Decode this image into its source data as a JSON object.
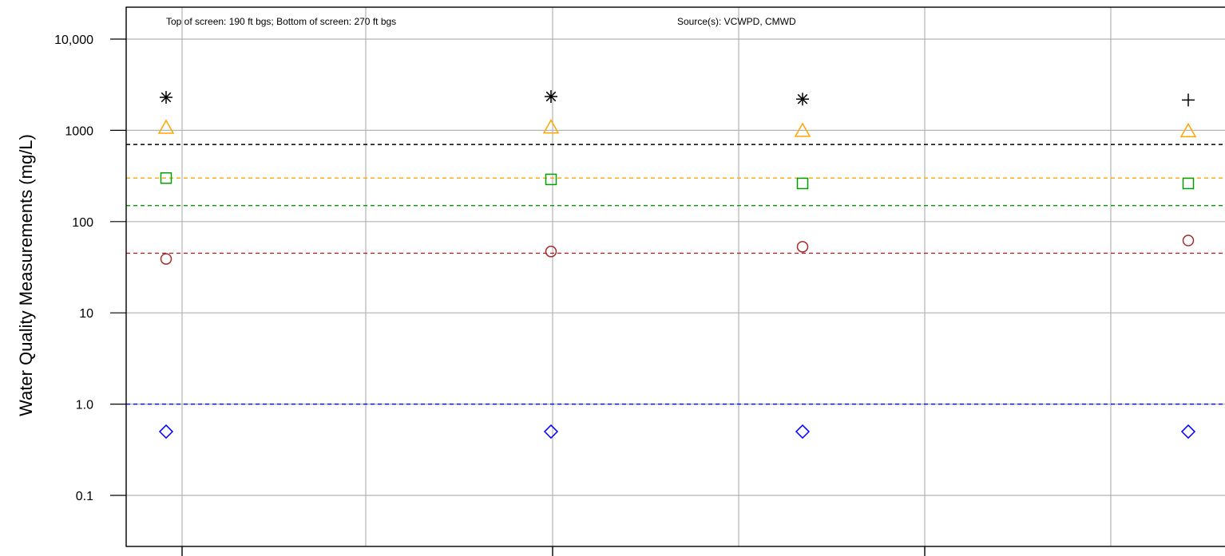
{
  "chart_data": {
    "type": "scatter",
    "title": "",
    "xlabel": "",
    "ylabel": "Water Quality Measurements (mg/L)",
    "y_scale": "log",
    "ylim": [
      0.04,
      16000
    ],
    "grid": true,
    "annotations": [
      "Top of screen: 190 ft bgs; Bottom of screen: 270 ft bgs",
      "Source(s): VCWPD, CMWD"
    ],
    "y_ticks": [
      {
        "value": 0.1,
        "label": "0.1"
      },
      {
        "value": 1,
        "label": "1.0"
      },
      {
        "value": 10,
        "label": "10"
      },
      {
        "value": 100,
        "label": "100"
      },
      {
        "value": 1000,
        "label": "1000"
      },
      {
        "value": 10000,
        "label": "10,000"
      }
    ],
    "reference_lines": [
      {
        "value": 700,
        "color": "#000000"
      },
      {
        "value": 300,
        "color": "#FFA500"
      },
      {
        "value": 150,
        "color": "#00A000"
      },
      {
        "value": 45,
        "color": "#A52A2A"
      },
      {
        "value": 1,
        "color": "#0000FF"
      }
    ],
    "series": [
      {
        "marker": "asterisk",
        "color": "#000000",
        "values": [
          2300,
          2350,
          2200,
          null
        ]
      },
      {
        "marker": "plus",
        "color": "#000000",
        "values": [
          null,
          null,
          null,
          2150
        ]
      },
      {
        "marker": "triangle",
        "color": "#FFA500",
        "values": [
          1070,
          1080,
          990,
          980
        ]
      },
      {
        "marker": "square",
        "color": "#00A000",
        "values": [
          300,
          290,
          262,
          262
        ]
      },
      {
        "marker": "circle",
        "color": "#A52A2A",
        "values": [
          39,
          47,
          53,
          62
        ]
      },
      {
        "marker": "diamond",
        "color": "#0000FF",
        "values": [
          0.5,
          0.5,
          0.5,
          0.5
        ]
      }
    ]
  }
}
